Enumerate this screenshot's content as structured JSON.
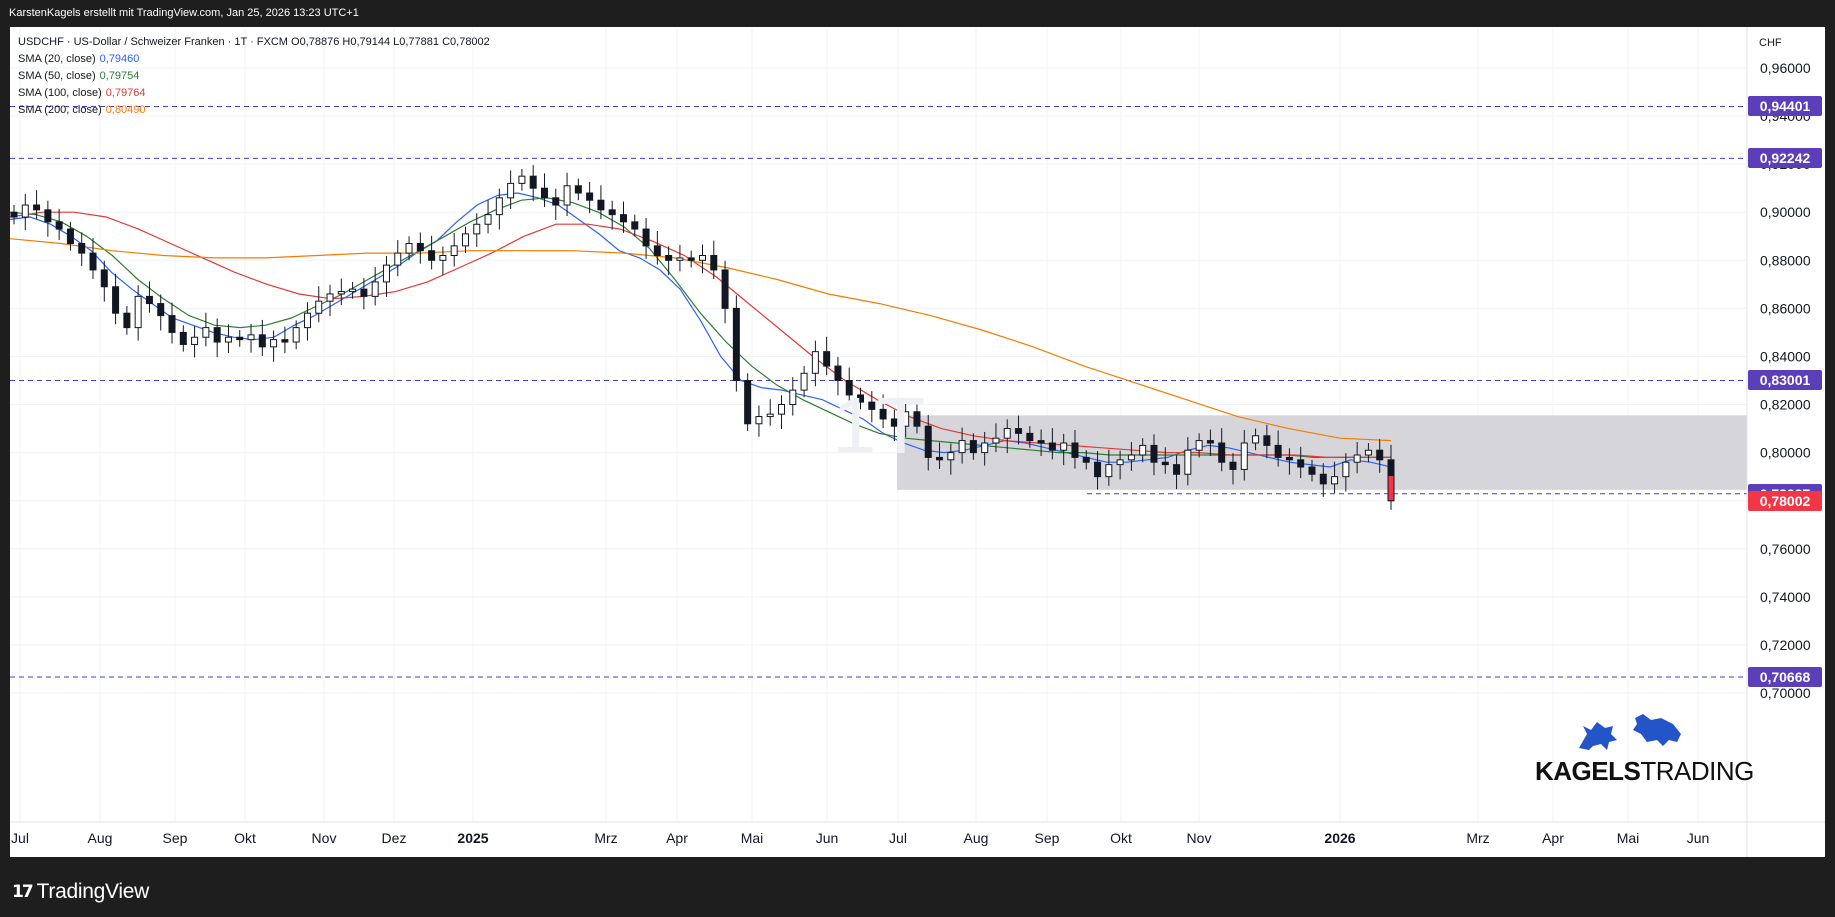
{
  "header": {
    "attribution": "KarstenKagels erstellt mit TradingView.com, Jan 25, 2026 13:23 UTC+1"
  },
  "legend": {
    "symbol_line": "USDCHF · US-Dollar / Schweizer Franken · 1T · FXCM  O0,78876  H0,79144  L0,77881  C0,78002",
    "indicators": [
      {
        "label": "SMA (20, close)",
        "value": "0,79460",
        "color": "#2962ff"
      },
      {
        "label": "SMA (50, close)",
        "value": "0,79754",
        "color": "#2e7d32"
      },
      {
        "label": "SMA (100, close)",
        "value": "0,79764",
        "color": "#e53935"
      },
      {
        "label": "SMA (200, close)",
        "value": "0,80490",
        "color": "#f57c00"
      }
    ]
  },
  "watermark": "1T",
  "currency": "CHF",
  "price_axis": {
    "ticks": [
      "0,96000",
      "0,94000",
      "0,92000",
      "0,90000",
      "0,88000",
      "0,86000",
      "0,84000",
      "0,82000",
      "0,80000",
      "0,78000",
      "0,76000",
      "0,74000",
      "0,72000",
      "0,70000"
    ]
  },
  "time_axis": {
    "labels": [
      "Jul",
      "Aug",
      "Sep",
      "Okt",
      "Nov",
      "Dez",
      "2025",
      "Mrz",
      "Apr",
      "Mai",
      "Jun",
      "Jul",
      "Aug",
      "Sep",
      "Okt",
      "Nov",
      "2026",
      "Mrz",
      "Apr",
      "Mai",
      "Jun"
    ],
    "bold": [
      "2025",
      "2026"
    ]
  },
  "levels": [
    {
      "label": "0,94401",
      "value": 0.94401,
      "color": "#5b3fb8"
    },
    {
      "label": "0,92242",
      "value": 0.92242,
      "color": "#5b3fb8"
    },
    {
      "label": "0,83001",
      "value": 0.83001,
      "color": "#5b3fb8"
    },
    {
      "label": "0,78287",
      "value": 0.78287,
      "color": "#5b3fb8"
    },
    {
      "label": "0,78002",
      "value": 0.78002,
      "color": "#f23645"
    },
    {
      "label": "0,70668",
      "value": 0.70668,
      "color": "#5b3fb8"
    }
  ],
  "brand": {
    "bold": "KAGELS",
    "regular": "TRADING"
  },
  "footer": {
    "logo_text": "TradingView",
    "logo_mark": "17"
  },
  "colors": {
    "up": "#ffffff",
    "down": "#131722",
    "zone": "#d1d1d6",
    "level_line": "#3d3dd8",
    "last_price": "#f23645"
  },
  "chart_data": {
    "type": "candlestick",
    "ylim": [
      0.695,
      0.972
    ],
    "series_close_path": [
      [
        0.898,
        0.903,
        0.901,
        0.896,
        0.893,
        0.887,
        0.883,
        0.876,
        0.869,
        0.858,
        0.852,
        0.865,
        0.862,
        0.857,
        0.85,
        0.845,
        0.848,
        0.852,
        0.846,
        0.848,
        0.847,
        0.849,
        0.844,
        0.847,
        0.846,
        0.852,
        0.858,
        0.863,
        0.866,
        0.867,
        0.868,
        0.865,
        0.871,
        0.878,
        0.883,
        0.887,
        0.884,
        0.88,
        0.882,
        0.886,
        0.891,
        0.895,
        0.899,
        0.906,
        0.912,
        0.915,
        0.91,
        0.906,
        0.903,
        0.911,
        0.908,
        0.905,
        0.901,
        0.899,
        0.896,
        0.893,
        0.886,
        0.882,
        0.88,
        0.881,
        0.88,
        0.882,
        0.876,
        0.86,
        0.83,
        0.812,
        0.815,
        0.816,
        0.82,
        0.826,
        0.833,
        0.842,
        0.836,
        0.83,
        0.824,
        0.821,
        0.818,
        0.814,
        0.811,
        0.817,
        0.811,
        0.798,
        0.797,
        0.8,
        0.805,
        0.8,
        0.804,
        0.806,
        0.81,
        0.808,
        0.805,
        0.804,
        0.801,
        0.804,
        0.798,
        0.796,
        0.79,
        0.795,
        0.797,
        0.799,
        0.803,
        0.796,
        0.795,
        0.791,
        0.801,
        0.805,
        0.804,
        0.796,
        0.793,
        0.804,
        0.807,
        0.803,
        0.798,
        0.797,
        0.794,
        0.791,
        0.787,
        0.79,
        0.796,
        0.799,
        0.801,
        0.797,
        0.78
      ]
    ],
    "sma": {
      "SMA (20, close)": [
        0.897,
        0.898,
        0.895,
        0.89,
        0.884,
        0.875,
        0.868,
        0.862,
        0.856,
        0.853,
        0.85,
        0.848,
        0.847,
        0.848,
        0.853,
        0.857,
        0.862,
        0.867,
        0.872,
        0.877,
        0.883,
        0.888,
        0.896,
        0.903,
        0.907,
        0.908,
        0.906,
        0.903,
        0.897,
        0.891,
        0.884,
        0.881,
        0.876,
        0.868,
        0.855,
        0.84,
        0.83,
        0.827,
        0.826,
        0.824,
        0.822,
        0.818,
        0.814,
        0.808,
        0.804,
        0.801,
        0.8,
        0.801,
        0.803,
        0.805,
        0.804,
        0.802,
        0.8,
        0.798,
        0.796,
        0.796,
        0.797,
        0.798,
        0.801,
        0.803,
        0.802,
        0.8,
        0.798,
        0.796,
        0.795,
        0.794,
        0.797,
        0.796,
        0.794
      ],
      "SMA (50, close)": [
        0.9,
        0.899,
        0.896,
        0.89,
        0.882,
        0.872,
        0.864,
        0.857,
        0.853,
        0.852,
        0.853,
        0.856,
        0.861,
        0.866,
        0.872,
        0.878,
        0.884,
        0.89,
        0.896,
        0.901,
        0.905,
        0.906,
        0.904,
        0.9,
        0.894,
        0.885,
        0.872,
        0.858,
        0.846,
        0.836,
        0.828,
        0.822,
        0.817,
        0.812,
        0.808,
        0.806,
        0.805,
        0.804,
        0.803,
        0.802,
        0.801,
        0.8,
        0.8,
        0.799,
        0.799,
        0.799,
        0.799,
        0.799,
        0.799,
        0.799,
        0.799,
        0.798,
        0.798,
        0.798,
        0.798
      ],
      "SMA (100, close)": [
        0.898,
        0.9,
        0.9,
        0.898,
        0.893,
        0.887,
        0.881,
        0.875,
        0.87,
        0.866,
        0.864,
        0.865,
        0.867,
        0.871,
        0.877,
        0.883,
        0.89,
        0.895,
        0.895,
        0.893,
        0.888,
        0.882,
        0.873,
        0.862,
        0.851,
        0.84,
        0.83,
        0.822,
        0.815,
        0.81,
        0.807,
        0.805,
        0.804,
        0.803,
        0.802,
        0.801,
        0.8,
        0.8,
        0.799,
        0.799,
        0.799,
        0.798,
        0.798,
        0.798
      ],
      "SMA (200, close)": [
        0.889,
        0.887,
        0.884,
        0.882,
        0.881,
        0.881,
        0.882,
        0.883,
        0.883,
        0.884,
        0.884,
        0.884,
        0.883,
        0.881,
        0.877,
        0.872,
        0.866,
        0.862,
        0.857,
        0.851,
        0.844,
        0.836,
        0.829,
        0.822,
        0.815,
        0.81,
        0.806,
        0.805
      ]
    }
  }
}
